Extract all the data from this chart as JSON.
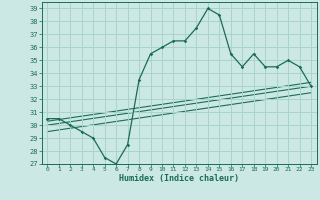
{
  "title": "",
  "xlabel": "Humidex (Indice chaleur)",
  "background_color": "#cce8e4",
  "line_color": "#1a6b5a",
  "grid_color": "#a8d4cc",
  "xlim": [
    -0.5,
    23.5
  ],
  "ylim": [
    27,
    39.5
  ],
  "yticks": [
    27,
    28,
    29,
    30,
    31,
    32,
    33,
    34,
    35,
    36,
    37,
    38,
    39
  ],
  "xticks": [
    0,
    1,
    2,
    3,
    4,
    5,
    6,
    7,
    8,
    9,
    10,
    11,
    12,
    13,
    14,
    15,
    16,
    17,
    18,
    19,
    20,
    21,
    22,
    23
  ],
  "main_line": [
    [
      0,
      30.5
    ],
    [
      1,
      30.5
    ],
    [
      2,
      30.0
    ],
    [
      3,
      29.5
    ],
    [
      4,
      29.0
    ],
    [
      5,
      27.5
    ],
    [
      6,
      27.0
    ],
    [
      7,
      28.5
    ],
    [
      8,
      33.5
    ],
    [
      9,
      35.5
    ],
    [
      10,
      36.0
    ],
    [
      11,
      36.5
    ],
    [
      12,
      36.5
    ],
    [
      13,
      37.5
    ],
    [
      14,
      39.0
    ],
    [
      15,
      38.5
    ],
    [
      16,
      35.5
    ],
    [
      17,
      34.5
    ],
    [
      18,
      35.5
    ],
    [
      19,
      34.5
    ],
    [
      20,
      34.5
    ],
    [
      21,
      35.0
    ],
    [
      22,
      34.5
    ],
    [
      23,
      33.0
    ]
  ],
  "trend_line1": [
    [
      0,
      30.3
    ],
    [
      23,
      33.3
    ]
  ],
  "trend_line2": [
    [
      0,
      30.0
    ],
    [
      23,
      33.0
    ]
  ],
  "trend_line3": [
    [
      0,
      29.5
    ],
    [
      23,
      32.5
    ]
  ]
}
